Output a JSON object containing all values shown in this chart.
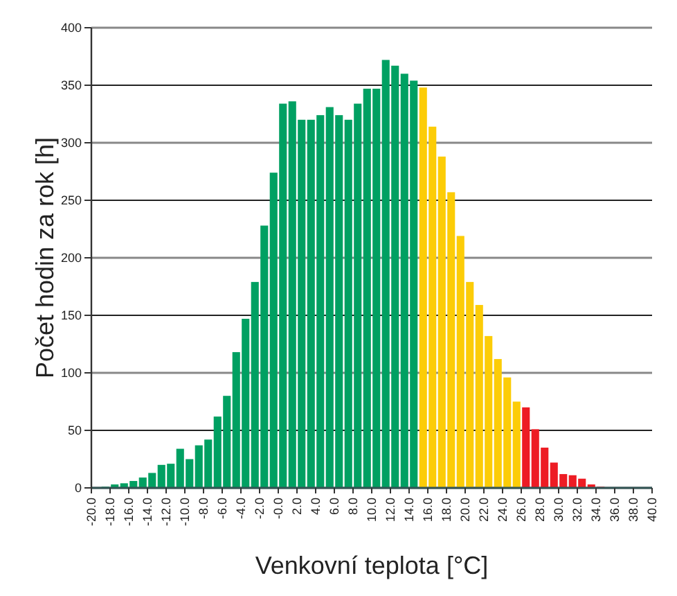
{
  "chart_data": {
    "type": "histogram",
    "xlabel": "Venkovní teplota [°C]",
    "ylabel": "Počet hodin za rok [h]",
    "bins": [
      -19,
      -18,
      -17,
      -16,
      -15,
      -14,
      -13,
      -12,
      -11,
      -10,
      -9,
      -8,
      -7,
      -6,
      -5,
      -4,
      -3,
      -2,
      -1,
      0,
      1,
      2,
      3,
      4,
      5,
      6,
      7,
      8,
      9,
      10,
      11,
      12,
      13,
      14,
      15,
      16,
      17,
      18,
      19,
      20,
      21,
      22,
      23,
      24,
      25,
      26,
      27,
      28,
      29,
      30,
      31,
      32,
      33,
      34,
      35
    ],
    "values": [
      1,
      3,
      4,
      6,
      9,
      13,
      20,
      21,
      34,
      25,
      37,
      42,
      62,
      80,
      118,
      147,
      179,
      228,
      274,
      334,
      336,
      320,
      320,
      324,
      331,
      324,
      320,
      334,
      347,
      347,
      372,
      367,
      360,
      354,
      348,
      314,
      288,
      257,
      219,
      179,
      159,
      132,
      112,
      96,
      75,
      70,
      51,
      35,
      22,
      12,
      11,
      8,
      3,
      1
    ],
    "colors": [
      "#00a062",
      "#00a062",
      "#00a062",
      "#00a062",
      "#00a062",
      "#00a062",
      "#00a062",
      "#00a062",
      "#00a062",
      "#00a062",
      "#00a062",
      "#00a062",
      "#00a062",
      "#00a062",
      "#00a062",
      "#00a062",
      "#00a062",
      "#00a062",
      "#00a062",
      "#00a062",
      "#00a062",
      "#00a062",
      "#00a062",
      "#00a062",
      "#00a062",
      "#00a062",
      "#00a062",
      "#00a062",
      "#00a062",
      "#00a062",
      "#00a062",
      "#00a062",
      "#00a062",
      "#00a062",
      "#fccc07",
      "#fccc07",
      "#fccc07",
      "#fccc07",
      "#fccc07",
      "#fccc07",
      "#fccc07",
      "#fccc07",
      "#fccc07",
      "#fccc07",
      "#fccc07",
      "#ed1c24",
      "#ed1c24",
      "#ed1c24",
      "#ed1c24",
      "#ed1c24",
      "#ed1c24",
      "#ed1c24",
      "#ed1c24",
      "#ed1c24"
    ],
    "xlim": [
      -20,
      40
    ],
    "xticks": [
      {
        "value": -20,
        "label": "-20.0"
      },
      {
        "value": -18,
        "label": "-18.0"
      },
      {
        "value": -16,
        "label": "-16.0"
      },
      {
        "value": -14,
        "label": "-14.0"
      },
      {
        "value": -12,
        "label": "-12.0"
      },
      {
        "value": -10,
        "label": "-10.0"
      },
      {
        "value": -8,
        "label": "-8.0"
      },
      {
        "value": -6,
        "label": "-6.0"
      },
      {
        "value": -4,
        "label": "-4.0"
      },
      {
        "value": -2,
        "label": "-2.0"
      },
      {
        "value": 0,
        "label": "-0.0"
      },
      {
        "value": 2,
        "label": "2.0"
      },
      {
        "value": 4,
        "label": "4.0"
      },
      {
        "value": 6,
        "label": "6.0"
      },
      {
        "value": 8,
        "label": "8.0"
      },
      {
        "value": 10,
        "label": "10.0"
      },
      {
        "value": 12,
        "label": "12.0"
      },
      {
        "value": 14,
        "label": "14.0"
      },
      {
        "value": 16,
        "label": "16.0"
      },
      {
        "value": 18,
        "label": "18.0"
      },
      {
        "value": 20,
        "label": "20.0"
      },
      {
        "value": 22,
        "label": "22.0"
      },
      {
        "value": 24,
        "label": "24.0"
      },
      {
        "value": 26,
        "label": "26.0"
      },
      {
        "value": 28,
        "label": "28.0"
      },
      {
        "value": 30,
        "label": "30.0"
      },
      {
        "value": 32,
        "label": "32.0"
      },
      {
        "value": 34,
        "label": "34.0"
      },
      {
        "value": 36,
        "label": "36.0"
      },
      {
        "value": 38,
        "label": "38.0"
      },
      {
        "value": 40,
        "label": "40.0"
      }
    ],
    "ylim": [
      0,
      400
    ],
    "yticks": [
      0,
      50,
      100,
      150,
      200,
      250,
      300,
      350,
      400
    ],
    "grid": "y"
  }
}
